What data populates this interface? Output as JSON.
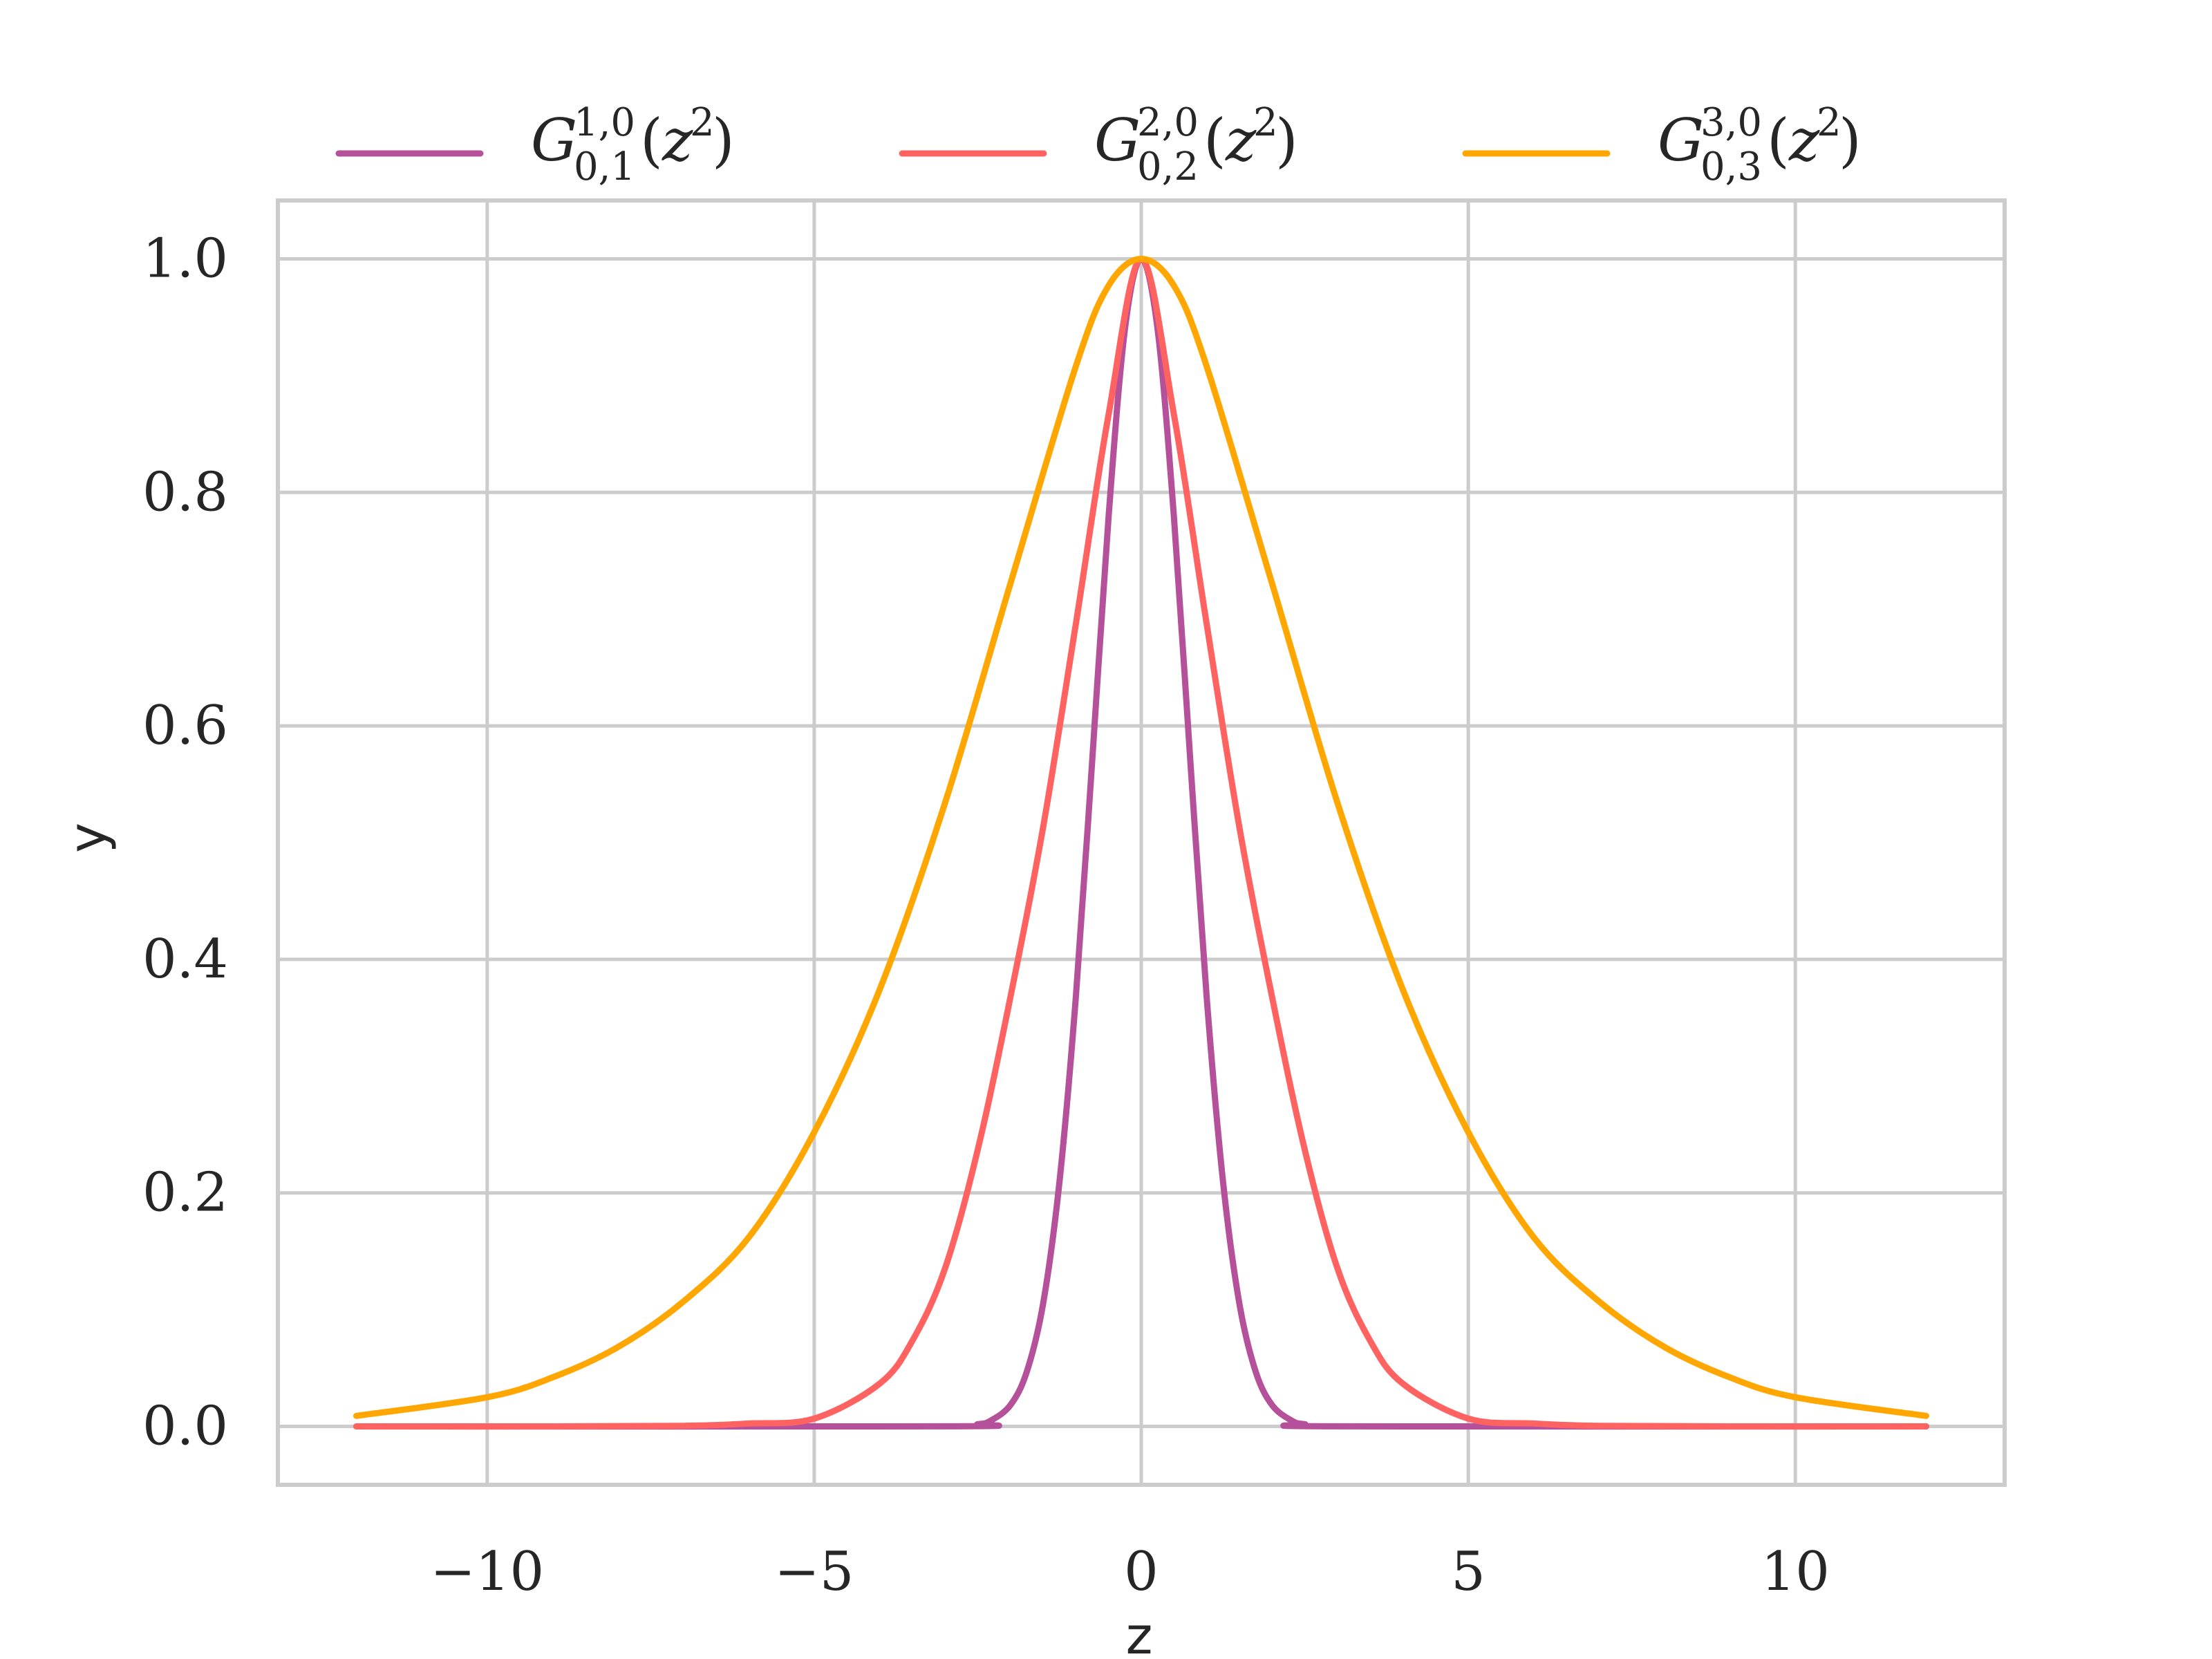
{
  "chart_data": {
    "type": "line",
    "xlabel": "z",
    "ylabel": "y",
    "xlim": [
      -13.2,
      13.2
    ],
    "ylim": [
      -0.05,
      1.05
    ],
    "x_ticks": [
      -10,
      -5,
      0,
      5,
      10
    ],
    "x_tick_labels": [
      "−10",
      "−5",
      "0",
      "5",
      "10"
    ],
    "y_ticks": [
      0.0,
      0.2,
      0.4,
      0.6,
      0.8,
      1.0
    ],
    "y_tick_labels": [
      "0.0",
      "0.2",
      "0.4",
      "0.6",
      "0.8",
      "1.0"
    ],
    "grid": true,
    "legend_position": "top-center",
    "x_range": [
      -12,
      12
    ],
    "series": [
      {
        "name": "G^{1,0}_{0,1}(z^2)",
        "legend": {
          "sup": "1,0",
          "sub": "0,1"
        },
        "color": "#b5509a",
        "x": [
          -12,
          -3,
          -2.5,
          -2.3,
          -2,
          -1.75,
          -1.5,
          -1.25,
          -1,
          -0.75,
          -0.5,
          -0.25,
          0,
          0.25,
          0.5,
          0.75,
          1,
          1.25,
          1.5,
          1.75,
          2,
          2.3,
          2.5,
          3,
          12
        ],
        "y": [
          0.0,
          0.0001,
          0.0019,
          0.005,
          0.0183,
          0.0468,
          0.1054,
          0.2096,
          0.3679,
          0.5698,
          0.7788,
          0.9394,
          1.0,
          0.9394,
          0.7788,
          0.5698,
          0.3679,
          0.2096,
          0.1054,
          0.0468,
          0.0183,
          0.005,
          0.0019,
          0.0001,
          0.0
        ]
      },
      {
        "name": "G^{2,0}_{0,2}(z^2)",
        "legend": {
          "sup": "2,0",
          "sub": "0,2"
        },
        "color": "#ff6361",
        "x": [
          -12,
          -9,
          -7,
          -6,
          -5,
          -4,
          -3.5,
          -3,
          -2.5,
          -2,
          -1.5,
          -1,
          -0.5,
          0,
          0.5,
          1,
          1.5,
          2,
          2.5,
          3,
          3.5,
          4,
          5,
          6,
          7,
          9,
          12
        ],
        "y": [
          0.0,
          0.0,
          0.0005,
          0.0025,
          0.0067,
          0.0366,
          0.0733,
          0.1353,
          0.2369,
          0.3679,
          0.5134,
          0.6873,
          0.8665,
          1.0,
          0.8665,
          0.6873,
          0.5134,
          0.3679,
          0.2369,
          0.1353,
          0.0733,
          0.0366,
          0.0067,
          0.0025,
          0.0005,
          0.0,
          0.0
        ]
      },
      {
        "name": "G^{3,0}_{0,3}(z^2)",
        "legend": {
          "sup": "3,0",
          "sub": "0,3"
        },
        "color": "#ffa600",
        "x": [
          -12,
          -10,
          -9,
          -8,
          -7,
          -6,
          -5,
          -4,
          -3,
          -2,
          -1,
          -0.5,
          0,
          0.5,
          1,
          2,
          3,
          4,
          5,
          6,
          7,
          8,
          9,
          10,
          12
        ],
        "y": [
          0.009,
          0.025,
          0.042,
          0.068,
          0.107,
          0.162,
          0.252,
          0.374,
          0.534,
          0.722,
          0.908,
          0.977,
          1.0,
          0.977,
          0.908,
          0.722,
          0.534,
          0.374,
          0.252,
          0.162,
          0.107,
          0.068,
          0.042,
          0.025,
          0.009
        ]
      }
    ]
  }
}
